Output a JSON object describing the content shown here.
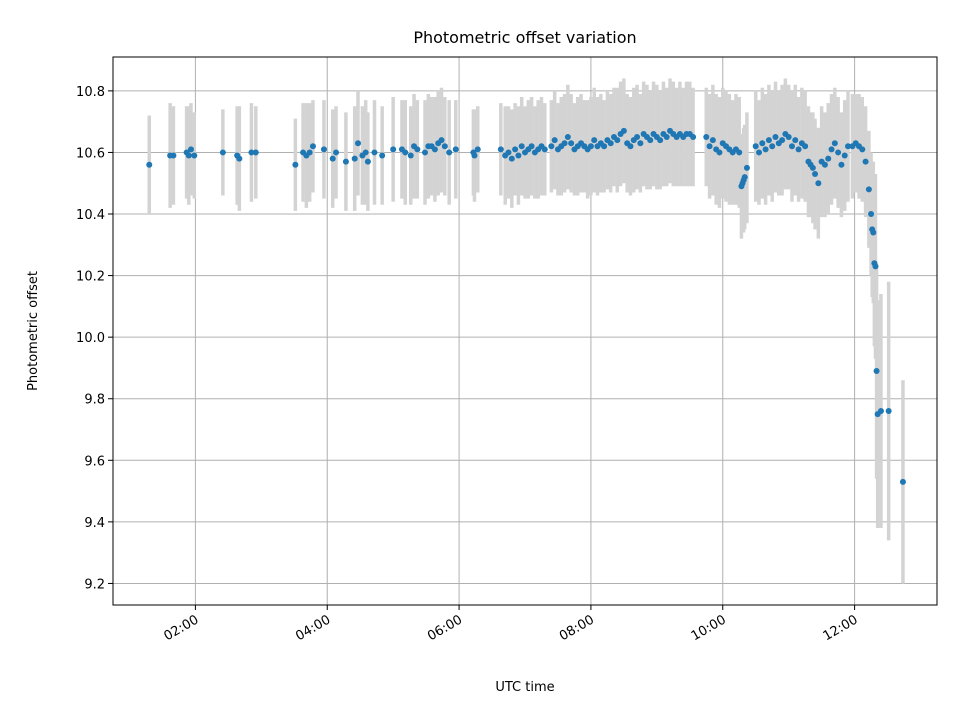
{
  "chart_data": {
    "type": "scatter",
    "title": "Photometric offset variation",
    "xlabel": "UTC time",
    "ylabel": "Photometric offset",
    "x_ticks": [
      "02:00",
      "04:00",
      "06:00",
      "08:00",
      "10:00",
      "12:00"
    ],
    "y_ticks": [
      "9.2",
      "9.4",
      "9.6",
      "9.8",
      "10.0",
      "10.2",
      "10.4",
      "10.6",
      "10.8"
    ],
    "xlim": [
      "00:45",
      "13:15"
    ],
    "ylim": [
      9.13,
      10.91
    ],
    "grid": true,
    "marker_color": "#1f77b4",
    "errorbar_color": "#d3d3d3",
    "series": [
      {
        "x": [
          "01:18",
          "01:37",
          "01:40",
          "01:52",
          "01:54",
          "01:56",
          "01:59",
          "02:25",
          "02:38",
          "02:40",
          "02:51",
          "02:55",
          "03:31",
          "03:38",
          "03:41",
          "03:44",
          "03:47",
          "03:57",
          "04:05",
          "04:08",
          "04:17",
          "04:25",
          "04:28",
          "04:32",
          "04:35",
          "04:37",
          "04:43",
          "04:50",
          "05:00",
          "05:08",
          "05:11",
          "05:16",
          "05:19",
          "05:22",
          "05:29",
          "05:32",
          "05:35",
          "05:38",
          "05:41",
          "05:44",
          "05:47",
          "05:51",
          "05:57",
          "06:13",
          "06:14",
          "06:17",
          "06:38",
          "06:42",
          "06:45",
          "06:48",
          "06:51",
          "06:54",
          "06:57",
          "07:00",
          "07:03",
          "07:06",
          "07:09",
          "07:12",
          "07:15",
          "07:18",
          "07:24",
          "07:27",
          "07:30",
          "07:33",
          "07:36",
          "07:39",
          "07:42",
          "07:45",
          "07:48",
          "07:51",
          "07:54",
          "07:57",
          "08:00",
          "08:03",
          "08:06",
          "08:09",
          "08:12",
          "08:15",
          "08:18",
          "08:21",
          "08:24",
          "08:27",
          "08:30",
          "08:33",
          "08:36",
          "08:39",
          "08:42",
          "08:45",
          "08:48",
          "08:51",
          "08:54",
          "08:57",
          "09:00",
          "09:03",
          "09:06",
          "09:09",
          "09:12",
          "09:15",
          "09:18",
          "09:21",
          "09:24",
          "09:27",
          "09:30",
          "09:33",
          "09:45",
          "09:48",
          "09:51",
          "09:54",
          "09:57",
          "10:00",
          "10:03",
          "10:06",
          "10:09",
          "10:12",
          "10:15",
          "10:17",
          "10:18",
          "10:19",
          "10:20",
          "10:22",
          "10:30",
          "10:33",
          "10:36",
          "10:39",
          "10:42",
          "10:45",
          "10:48",
          "10:51",
          "10:54",
          "10:57",
          "11:00",
          "11:03",
          "11:06",
          "11:09",
          "11:12",
          "11:15",
          "11:18",
          "11:20",
          "11:22",
          "11:24",
          "11:27",
          "11:30",
          "11:33",
          "11:36",
          "11:39",
          "11:42",
          "11:45",
          "11:48",
          "11:51",
          "11:54",
          "11:58",
          "12:01",
          "12:04",
          "12:07",
          "12:10",
          "12:13",
          "12:15",
          "12:16",
          "12:17",
          "12:18",
          "12:19",
          "12:20",
          "12:21",
          "12:24",
          "12:31",
          "12:44"
        ],
        "y": [
          10.56,
          10.59,
          10.59,
          10.6,
          10.59,
          10.61,
          10.59,
          10.6,
          10.59,
          10.58,
          10.6,
          10.6,
          10.56,
          10.6,
          10.59,
          10.6,
          10.62,
          10.61,
          10.58,
          10.6,
          10.57,
          10.58,
          10.63,
          10.59,
          10.6,
          10.57,
          10.6,
          10.59,
          10.61,
          10.61,
          10.6,
          10.59,
          10.62,
          10.61,
          10.6,
          10.62,
          10.62,
          10.61,
          10.63,
          10.64,
          10.62,
          10.6,
          10.61,
          10.6,
          10.59,
          10.61,
          10.61,
          10.59,
          10.6,
          10.58,
          10.61,
          10.59,
          10.62,
          10.6,
          10.61,
          10.62,
          10.6,
          10.61,
          10.62,
          10.61,
          10.62,
          10.64,
          10.61,
          10.62,
          10.63,
          10.65,
          10.63,
          10.61,
          10.62,
          10.63,
          10.62,
          10.61,
          10.62,
          10.64,
          10.62,
          10.63,
          10.62,
          10.64,
          10.63,
          10.65,
          10.64,
          10.66,
          10.67,
          10.63,
          10.62,
          10.64,
          10.65,
          10.63,
          10.66,
          10.65,
          10.64,
          10.66,
          10.65,
          10.64,
          10.66,
          10.65,
          10.67,
          10.66,
          10.65,
          10.66,
          10.65,
          10.66,
          10.66,
          10.65,
          10.65,
          10.62,
          10.64,
          10.61,
          10.6,
          10.63,
          10.62,
          10.61,
          10.6,
          10.61,
          10.6,
          10.49,
          10.5,
          10.51,
          10.52,
          10.55,
          10.62,
          10.6,
          10.63,
          10.61,
          10.64,
          10.62,
          10.65,
          10.63,
          10.64,
          10.66,
          10.65,
          10.62,
          10.64,
          10.61,
          10.63,
          10.62,
          10.57,
          10.56,
          10.55,
          10.53,
          10.5,
          10.57,
          10.56,
          10.58,
          10.61,
          10.63,
          10.6,
          10.56,
          10.59,
          10.62,
          10.62,
          10.63,
          10.62,
          10.61,
          10.57,
          10.48,
          10.4,
          10.35,
          10.34,
          10.24,
          10.23,
          9.89,
          9.75,
          9.76,
          9.76,
          9.53
        ],
        "err": [
          0.16,
          0.17,
          0.16,
          0.15,
          0.16,
          0.15,
          0.14,
          0.14,
          0.16,
          0.17,
          0.16,
          0.15,
          0.15,
          0.16,
          0.17,
          0.16,
          0.15,
          0.16,
          0.16,
          0.15,
          0.16,
          0.17,
          0.17,
          0.16,
          0.17,
          0.16,
          0.17,
          0.16,
          0.17,
          0.16,
          0.17,
          0.16,
          0.17,
          0.16,
          0.17,
          0.17,
          0.16,
          0.17,
          0.17,
          0.17,
          0.16,
          0.17,
          0.16,
          0.14,
          0.15,
          0.14,
          0.15,
          0.16,
          0.15,
          0.16,
          0.15,
          0.16,
          0.16,
          0.15,
          0.16,
          0.16,
          0.15,
          0.16,
          0.16,
          0.15,
          0.15,
          0.16,
          0.15,
          0.16,
          0.16,
          0.17,
          0.16,
          0.15,
          0.16,
          0.16,
          0.15,
          0.16,
          0.16,
          0.17,
          0.16,
          0.16,
          0.15,
          0.16,
          0.16,
          0.16,
          0.17,
          0.17,
          0.17,
          0.16,
          0.16,
          0.17,
          0.17,
          0.16,
          0.17,
          0.17,
          0.16,
          0.17,
          0.17,
          0.16,
          0.17,
          0.16,
          0.17,
          0.17,
          0.16,
          0.17,
          0.16,
          0.17,
          0.17,
          0.16,
          0.16,
          0.17,
          0.18,
          0.18,
          0.18,
          0.18,
          0.18,
          0.18,
          0.17,
          0.18,
          0.18,
          0.17,
          0.16,
          0.17,
          0.17,
          0.18,
          0.18,
          0.17,
          0.18,
          0.18,
          0.18,
          0.18,
          0.18,
          0.17,
          0.18,
          0.18,
          0.17,
          0.18,
          0.18,
          0.17,
          0.18,
          0.18,
          0.18,
          0.17,
          0.18,
          0.18,
          0.18,
          0.18,
          0.17,
          0.18,
          0.18,
          0.18,
          0.18,
          0.17,
          0.18,
          0.18,
          0.17,
          0.16,
          0.17,
          0.17,
          0.18,
          0.19,
          0.2,
          0.22,
          0.23,
          0.27,
          0.3,
          0.35,
          0.37,
          0.38,
          0.42,
          0.33
        ]
      }
    ]
  }
}
